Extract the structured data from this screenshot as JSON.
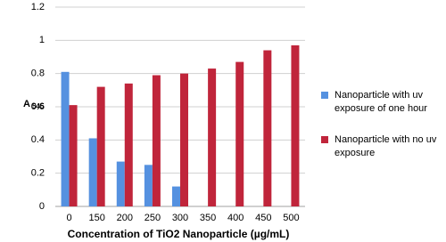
{
  "chart_data": {
    "type": "bar",
    "x_label": "Concentration of TiO2 Nanoparticle (µg/mL)",
    "y_label": "A",
    "y_label_subscript": "545",
    "categories": [
      "0",
      "150",
      "200",
      "250",
      "300",
      "350",
      "400",
      "450",
      "500"
    ],
    "series": [
      {
        "name": "Nanoparticle with uv exposure of one hour",
        "color": "#5591e0",
        "values": [
          0.81,
          0.41,
          0.27,
          0.25,
          0.12,
          null,
          null,
          null,
          null
        ]
      },
      {
        "name": "Nanoparticle with no uv exposure",
        "color": "#c0253b",
        "values": [
          0.61,
          0.72,
          0.74,
          0.79,
          0.8,
          0.83,
          0.87,
          0.94,
          0.97
        ]
      }
    ],
    "ylim": [
      0,
      1.2
    ],
    "yticks": [
      0,
      0.2,
      0.4,
      0.6,
      0.8,
      1,
      1.2
    ],
    "grid": true,
    "legend": "right"
  }
}
